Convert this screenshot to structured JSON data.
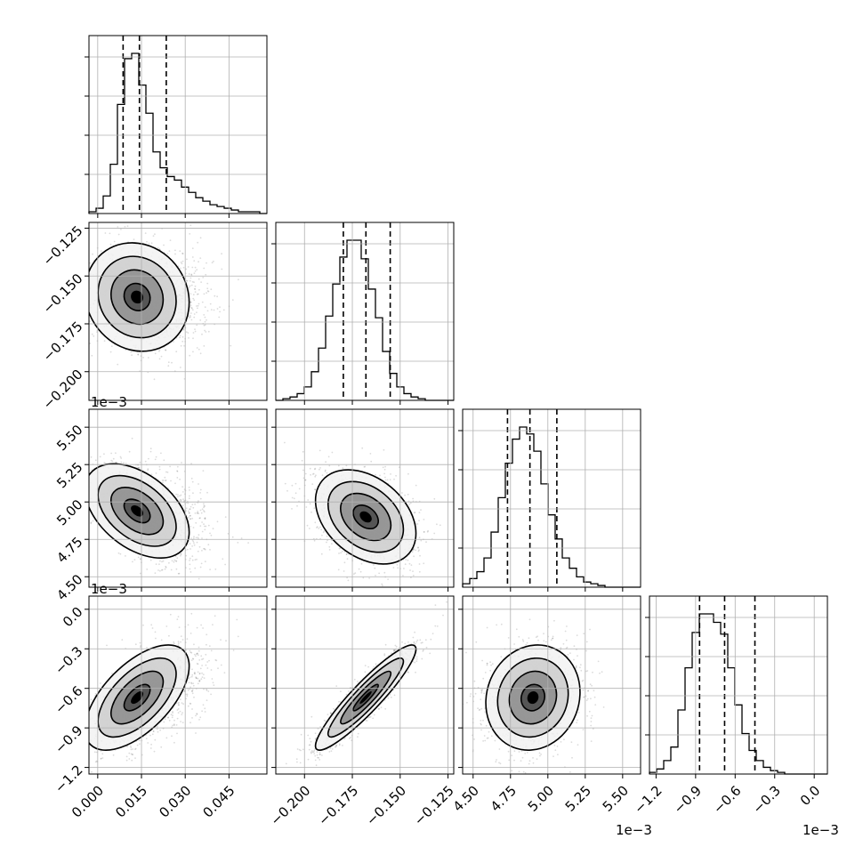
{
  "chart_data": {
    "type": "corner",
    "grid": true,
    "parameters": [
      {
        "range": [
          -0.003,
          0.058
        ],
        "ticks": [
          0.0,
          0.015,
          0.03,
          0.045
        ],
        "tick_labels": [
          "0.000",
          "0.015",
          "0.030",
          "0.045"
        ],
        "offset_label": "",
        "quantiles": [
          0.0087,
          0.0143,
          0.0235
        ],
        "hist_counts": [
          1,
          3,
          10,
          28,
          62,
          88,
          91,
          73,
          57,
          35,
          26,
          21,
          19,
          15,
          12,
          9,
          7,
          5,
          4,
          3,
          2,
          1,
          1,
          1,
          0
        ]
      },
      {
        "range": [
          -0.215,
          -0.122
        ],
        "ticks": [
          -0.2,
          -0.175,
          -0.15,
          -0.125
        ],
        "tick_labels": [
          "−0.200",
          "−0.175",
          "−0.150",
          "−0.125"
        ],
        "offset_label": "",
        "quantiles": [
          -0.1797,
          -0.1679,
          -0.1552
        ],
        "hist_counts": [
          0,
          1,
          2,
          4,
          8,
          17,
          31,
          50,
          69,
          85,
          95,
          95,
          84,
          66,
          49,
          29,
          16,
          8,
          4,
          2,
          1,
          0,
          0,
          0,
          0
        ]
      },
      {
        "range": [
          4.43,
          5.62
        ],
        "ticks": [
          4.5,
          4.75,
          5.0,
          5.25,
          5.5
        ],
        "tick_labels": [
          "4.50",
          "4.75",
          "5.00",
          "5.25",
          "5.50"
        ],
        "offset_label": "1e−3",
        "quantiles": [
          4.73,
          4.88,
          5.06
        ],
        "hist_counts": [
          2,
          5,
          9,
          17,
          32,
          52,
          72,
          86,
          93,
          89,
          79,
          60,
          42,
          28,
          17,
          11,
          6,
          3,
          2,
          1,
          0,
          0,
          0,
          0,
          0
        ]
      },
      {
        "range": [
          -1.25,
          0.1
        ],
        "ticks": [
          -1.2,
          -0.9,
          -0.6,
          -0.3,
          0.0
        ],
        "tick_labels": [
          "−1.2",
          "−0.9",
          "−0.6",
          "−0.3",
          "0.0"
        ],
        "offset_label": "1e−3",
        "quantiles": [
          -0.87,
          -0.68,
          -0.45
        ],
        "hist_counts": [
          1,
          3,
          8,
          16,
          38,
          63,
          84,
          95,
          95,
          90,
          83,
          63,
          41,
          24,
          14,
          8,
          4,
          2,
          1,
          0,
          0,
          0,
          0,
          0,
          0
        ]
      }
    ],
    "offset_labels_shown": [
      {
        "row": 1,
        "col": 0,
        "text": "1e−3"
      },
      {
        "row": 2,
        "col": 0,
        "text": "1e−3"
      },
      {
        "row": 3,
        "col": 2,
        "text": "1e−3"
      },
      {
        "row": 3,
        "col": 3,
        "text": "1e−3"
      }
    ],
    "pairs": [
      {
        "row": 1,
        "col": 0,
        "mean": [
          0.0135,
          -0.161
        ],
        "std": [
          0.0085,
          0.0135
        ],
        "corr": -0.1
      },
      {
        "row": 2,
        "col": 0,
        "mean": [
          0.0135,
          4.94
        ],
        "std": [
          0.0085,
          0.15
        ],
        "corr": -0.45
      },
      {
        "row": 2,
        "col": 1,
        "mean": [
          -0.168,
          4.9
        ],
        "std": [
          0.0125,
          0.15
        ],
        "corr": -0.35
      },
      {
        "row": 3,
        "col": 0,
        "mean": [
          0.0135,
          -0.67
        ],
        "std": [
          0.0085,
          0.19
        ],
        "corr": 0.6
      },
      {
        "row": 3,
        "col": 1,
        "mean": [
          -0.168,
          -0.67
        ],
        "std": [
          0.0125,
          0.19
        ],
        "corr": 0.92
      },
      {
        "row": 3,
        "col": 2,
        "mean": [
          4.9,
          -0.67
        ],
        "std": [
          0.15,
          0.19
        ],
        "corr": 0.1
      }
    ],
    "contour_levels_sigma": [
      0.5,
      1.0,
      1.5,
      2.0
    ]
  }
}
